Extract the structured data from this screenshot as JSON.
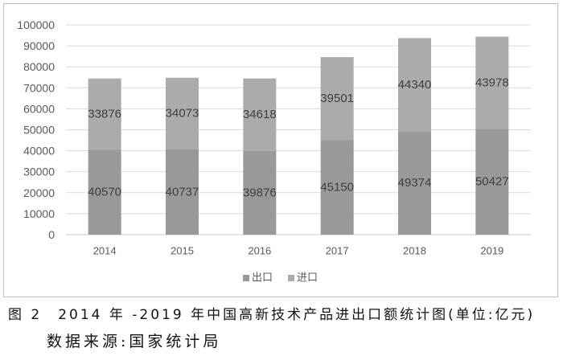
{
  "chart_data": {
    "type": "bar",
    "stacked": true,
    "categories": [
      "2014",
      "2015",
      "2016",
      "2017",
      "2018",
      "2019"
    ],
    "series": [
      {
        "name": "出口",
        "values": [
          40570,
          40737,
          39876,
          45150,
          49374,
          50427
        ],
        "color": "#999999"
      },
      {
        "name": "进口",
        "values": [
          33876,
          34073,
          34618,
          39501,
          44340,
          43978
        ],
        "color": "#ababab"
      }
    ],
    "ylim": [
      0,
      100000
    ],
    "yticks": [
      0,
      10000,
      20000,
      30000,
      40000,
      50000,
      60000,
      70000,
      80000,
      90000,
      100000
    ],
    "grid": true,
    "data_labels": true,
    "legend": "bottom"
  },
  "caption": {
    "figure": "图 2　2014 年 -2019 年中国高新技术产品进出口额统计图(单位:亿元)",
    "source": "数据来源:国家统计局"
  }
}
